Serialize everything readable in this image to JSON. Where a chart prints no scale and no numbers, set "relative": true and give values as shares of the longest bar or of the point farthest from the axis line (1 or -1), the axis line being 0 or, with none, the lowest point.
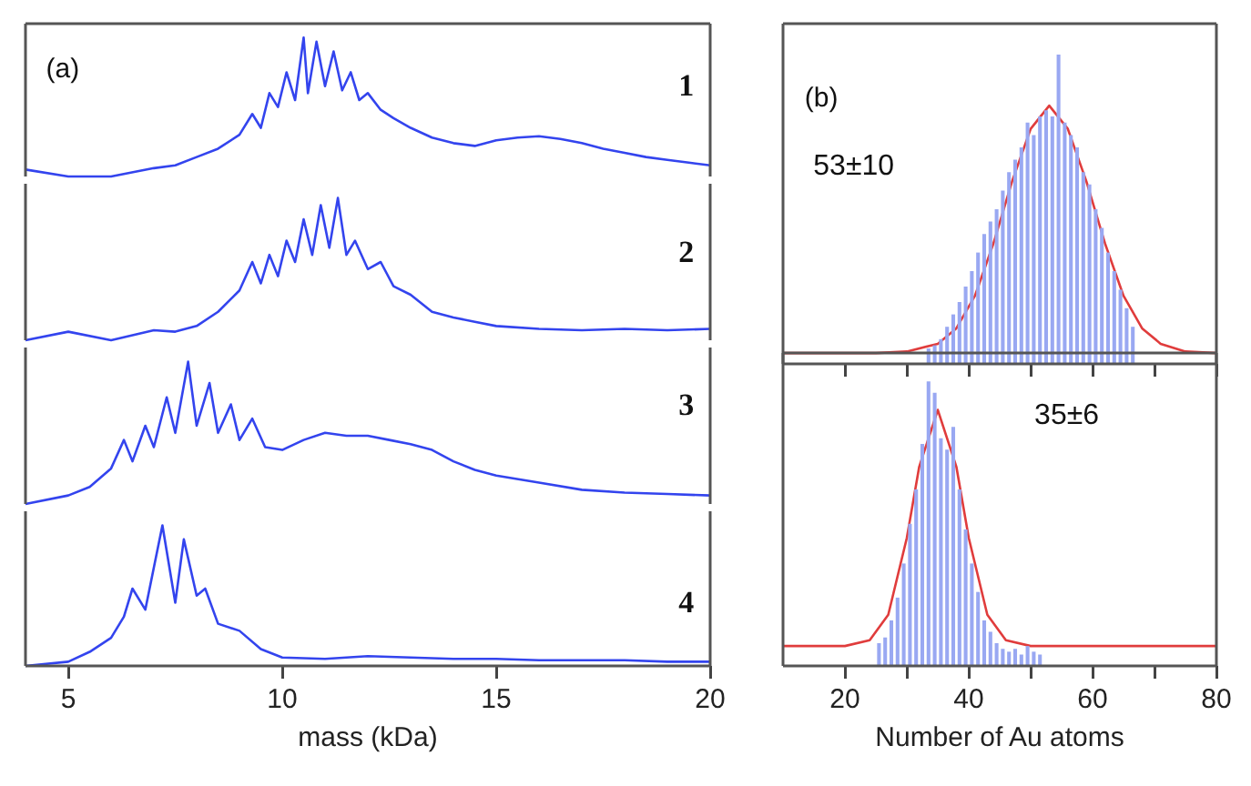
{
  "chart_data": [
    {
      "type": "line",
      "relative": true,
      "marker": "none",
      "xlim": [
        4,
        20
      ],
      "annotations": [
        "(a)",
        "1"
      ],
      "series": [
        {
          "color": "#3344ee",
          "x": [
            4,
            5,
            6,
            7,
            7.5,
            8,
            8.5,
            9,
            9.3,
            9.5,
            9.7,
            9.9,
            10.1,
            10.3,
            10.5,
            10.6,
            10.8,
            11,
            11.2,
            11.4,
            11.6,
            11.8,
            12,
            12.3,
            12.6,
            13,
            13.5,
            14,
            14.5,
            15,
            15.5,
            16,
            16.5,
            17,
            17.5,
            18,
            18.5,
            19,
            19.5,
            20
          ],
          "values": [
            0.05,
            0,
            0,
            0.06,
            0.08,
            0.14,
            0.2,
            0.3,
            0.45,
            0.35,
            0.6,
            0.5,
            0.75,
            0.55,
            1.0,
            0.6,
            0.97,
            0.65,
            0.9,
            0.62,
            0.75,
            0.55,
            0.6,
            0.48,
            0.42,
            0.35,
            0.28,
            0.24,
            0.22,
            0.26,
            0.28,
            0.29,
            0.27,
            0.24,
            0.2,
            0.17,
            0.14,
            0.12,
            0.1,
            0.08
          ]
        }
      ]
    },
    {
      "type": "line",
      "relative": true,
      "marker": "none",
      "xlim": [
        4,
        20
      ],
      "annotations": [
        "2"
      ],
      "series": [
        {
          "color": "#3344ee",
          "x": [
            4,
            5,
            6,
            7,
            7.5,
            8,
            8.5,
            9,
            9.3,
            9.5,
            9.7,
            9.9,
            10.1,
            10.3,
            10.5,
            10.7,
            10.9,
            11.1,
            11.3,
            11.5,
            11.7,
            12,
            12.3,
            12.6,
            13,
            13.5,
            14,
            14.5,
            15,
            16,
            17,
            18,
            19,
            20
          ],
          "values": [
            0,
            0.06,
            0,
            0.07,
            0.06,
            0.1,
            0.2,
            0.35,
            0.55,
            0.4,
            0.6,
            0.45,
            0.7,
            0.55,
            0.85,
            0.6,
            0.95,
            0.65,
            1.0,
            0.6,
            0.7,
            0.5,
            0.55,
            0.38,
            0.32,
            0.2,
            0.16,
            0.13,
            0.1,
            0.08,
            0.07,
            0.08,
            0.07,
            0.08
          ]
        }
      ]
    },
    {
      "type": "line",
      "relative": true,
      "marker": "none",
      "xlim": [
        4,
        20
      ],
      "annotations": [
        "3"
      ],
      "series": [
        {
          "color": "#3344ee",
          "x": [
            4,
            5,
            5.5,
            6,
            6.3,
            6.5,
            6.8,
            7,
            7.3,
            7.5,
            7.8,
            8,
            8.3,
            8.5,
            8.8,
            9,
            9.3,
            9.6,
            10,
            10.5,
            11,
            11.5,
            12,
            12.5,
            13,
            13.5,
            14,
            14.5,
            15,
            16,
            17,
            18,
            19,
            20
          ],
          "values": [
            0,
            0.06,
            0.12,
            0.25,
            0.45,
            0.3,
            0.55,
            0.4,
            0.75,
            0.5,
            1.0,
            0.55,
            0.85,
            0.5,
            0.7,
            0.45,
            0.6,
            0.4,
            0.38,
            0.45,
            0.5,
            0.48,
            0.48,
            0.45,
            0.42,
            0.38,
            0.3,
            0.24,
            0.2,
            0.15,
            0.1,
            0.08,
            0.07,
            0.06
          ]
        }
      ]
    },
    {
      "type": "line",
      "relative": true,
      "marker": "none",
      "xlim": [
        4,
        20
      ],
      "xticks": [
        5,
        10,
        15,
        20
      ],
      "xlabel": "mass (kDa)",
      "annotations": [
        "4"
      ],
      "series": [
        {
          "color": "#3344ee",
          "x": [
            4,
            5,
            5.5,
            6,
            6.3,
            6.5,
            6.8,
            7,
            7.2,
            7.5,
            7.7,
            8,
            8.2,
            8.5,
            9,
            9.5,
            10,
            11,
            12,
            13,
            14,
            15,
            16,
            17,
            18,
            19,
            20
          ],
          "values": [
            0,
            0.03,
            0.1,
            0.2,
            0.35,
            0.55,
            0.4,
            0.7,
            1.0,
            0.45,
            0.9,
            0.5,
            0.55,
            0.3,
            0.25,
            0.12,
            0.06,
            0.05,
            0.07,
            0.06,
            0.05,
            0.05,
            0.04,
            0.04,
            0.04,
            0.03,
            0.03
          ]
        }
      ]
    },
    {
      "type": "histogram",
      "relative": true,
      "color": "#99a8f2",
      "xlim": [
        10,
        80
      ],
      "xticks": [
        20,
        {
          "value": 30,
          "label": null
        },
        40,
        {
          "value": 50,
          "label": null
        },
        60,
        {
          "value": 70,
          "label": null
        },
        80
      ],
      "tick_labels": false,
      "annotations": [
        "(b)",
        "53±10"
      ],
      "bins": [
        33,
        34,
        35,
        36,
        37,
        38,
        39,
        40,
        41,
        42,
        43,
        44,
        45,
        46,
        47,
        48,
        49,
        50,
        51,
        52,
        53,
        54,
        55,
        56,
        57,
        58,
        59,
        60,
        61,
        62,
        63,
        64,
        65,
        66,
        67
      ],
      "values": [
        0.05,
        0.06,
        0.08,
        0.12,
        0.16,
        0.2,
        0.25,
        0.3,
        0.36,
        0.42,
        0.46,
        0.5,
        0.56,
        0.62,
        0.66,
        0.7,
        0.78,
        0.74,
        0.8,
        0.82,
        0.8,
        1.0,
        0.78,
        0.74,
        0.7,
        0.62,
        0.58,
        0.5,
        0.44,
        0.36,
        0.3,
        0.24,
        0.18,
        0.12
      ],
      "series": [
        {
          "type": "line",
          "color": "#e03c3c",
          "x": [
            10,
            20,
            25,
            30,
            35,
            38,
            41,
            44,
            47,
            50,
            53,
            56,
            59,
            62,
            65,
            68,
            71,
            75,
            80
          ],
          "values": [
            0.035,
            0.035,
            0.035,
            0.04,
            0.065,
            0.115,
            0.22,
            0.39,
            0.59,
            0.76,
            0.835,
            0.76,
            0.59,
            0.39,
            0.22,
            0.115,
            0.065,
            0.04,
            0.035
          ]
        }
      ]
    },
    {
      "type": "histogram",
      "relative": true,
      "color": "#99a8f2",
      "xlim": [
        10,
        80
      ],
      "xticks": [
        20,
        {
          "value": 30,
          "label": null
        },
        40,
        {
          "value": 50,
          "label": null
        },
        60,
        {
          "value": 70,
          "label": null
        },
        80
      ],
      "xlabel": "Number of Au atoms",
      "annotations": [
        "35±6"
      ],
      "bins": [
        25,
        26,
        27,
        28,
        29,
        30,
        31,
        32,
        33,
        34,
        35,
        36,
        37,
        38,
        39,
        40,
        41,
        42,
        43,
        44,
        45,
        46,
        47,
        48,
        49,
        50,
        51,
        52
      ],
      "values": [
        0.08,
        0.1,
        0.16,
        0.24,
        0.36,
        0.5,
        0.62,
        0.78,
        1.0,
        0.96,
        0.8,
        0.76,
        0.84,
        0.62,
        0.48,
        0.36,
        0.26,
        0.16,
        0.12,
        0.08,
        0.06,
        0.05,
        0.06,
        0.04,
        0.07,
        0.05,
        0.04
      ],
      "series": [
        {
          "type": "line",
          "color": "#e03c3c",
          "x": [
            10,
            20,
            24,
            27,
            30,
            32,
            35,
            38,
            40,
            43,
            46,
            50,
            60,
            80
          ],
          "values": [
            0.07,
            0.07,
            0.09,
            0.18,
            0.45,
            0.7,
            0.9,
            0.7,
            0.45,
            0.18,
            0.09,
            0.07,
            0.07,
            0.07
          ]
        }
      ]
    }
  ]
}
